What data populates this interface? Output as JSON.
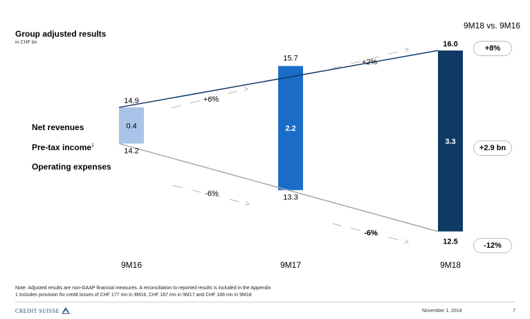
{
  "header": {
    "title": "Group adjusted results",
    "subtitle": "in CHF bn",
    "comparison_title": "9M18 vs. 9M16"
  },
  "rows": {
    "net_revenues": "Net revenues",
    "pretax_income": "Pre-tax income",
    "pretax_sup": "1",
    "operating_expenses": "Operating expenses"
  },
  "changes": {
    "revenues": "+8%",
    "pretax": "+2.9 bn",
    "expenses": "-12%"
  },
  "notes": {
    "line1": "Note: Adjusted results are non-GAAP financial measures. A reconciliation to reported results is included in the Appendix",
    "line2": "1 Includes provision for credit losses of CHF 177 mn in 9M16, CHF 167 mn in 9M17 and CHF 186 mn in 9M18"
  },
  "footer": {
    "logo": "CREDIT SUISSE",
    "date": "November 1, 2018",
    "page": "7"
  },
  "colors": {
    "revenue_line": "#0f3a66",
    "expense_line": "#a9a9a9",
    "bar_9M16": "#a9c4e8",
    "bar_9M17": "#1b6cc7",
    "bar_9M18": "#0f3a66",
    "arrow": "#b5b5b5"
  },
  "chart_data": {
    "type": "bar",
    "categories": [
      "9M16",
      "9M17",
      "9M18"
    ],
    "series": [
      {
        "name": "Net revenues",
        "values": [
          14.9,
          15.7,
          16.0
        ],
        "labels": [
          "14.9",
          "15.7",
          "16.0"
        ]
      },
      {
        "name": "Operating expenses",
        "values": [
          14.2,
          13.3,
          12.5
        ],
        "labels": [
          "14.2",
          "13.3",
          "12.5"
        ]
      },
      {
        "name": "Pre-tax income",
        "values": [
          0.4,
          2.2,
          3.3
        ],
        "labels": [
          "0.4",
          "2.2",
          "3.3"
        ]
      }
    ],
    "growth_labels": {
      "revenues": [
        "+6%",
        "+2%"
      ],
      "expenses": [
        "-6%",
        "-6%"
      ]
    }
  }
}
